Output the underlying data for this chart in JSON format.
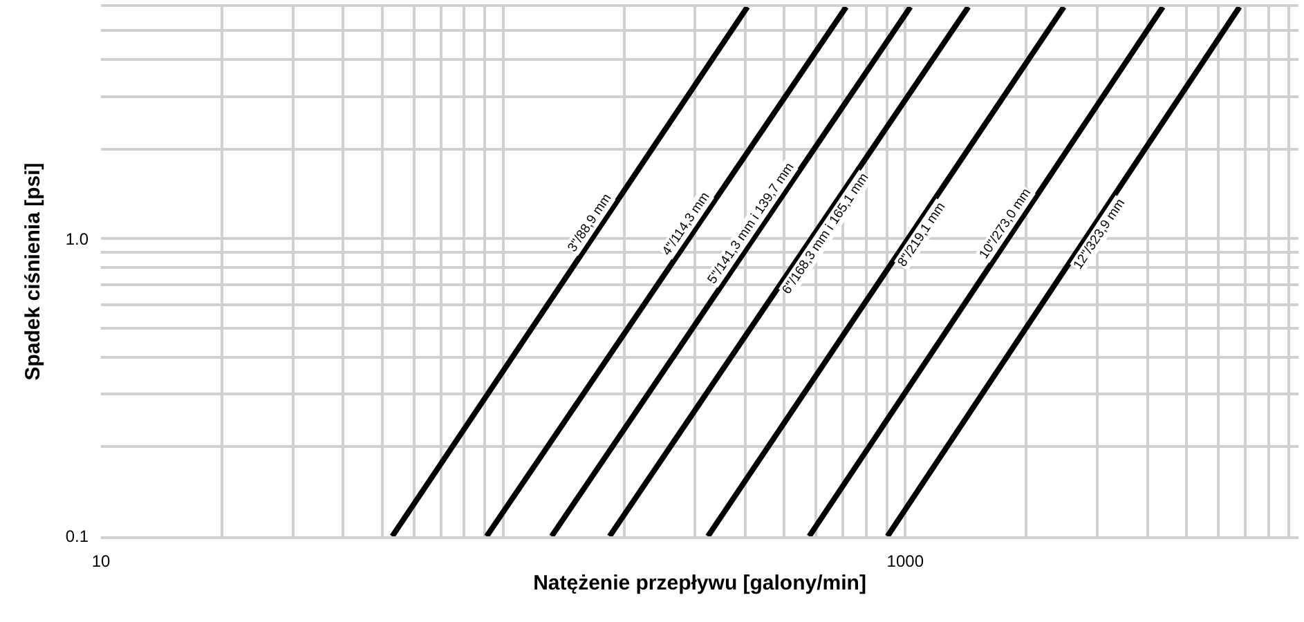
{
  "chart_data": {
    "type": "line",
    "xlabel": "Natężenie przepływu [galony/min]",
    "ylabel": "Spadek ciśnienia [psi]",
    "log": "xy",
    "grid": true,
    "legend": false,
    "marker": "none",
    "line_style": "solid",
    "xlim": [
      10,
      9500
    ],
    "ylim": [
      0.1,
      6
    ],
    "xticks": [
      10,
      {
        "value": 20,
        "label": null
      },
      {
        "value": 30,
        "label": null
      },
      {
        "value": 40,
        "label": null
      },
      {
        "value": 50,
        "label": null
      },
      {
        "value": 60,
        "label": null
      },
      {
        "value": 70,
        "label": null
      },
      {
        "value": 80,
        "label": null
      },
      {
        "value": 90,
        "label": null
      },
      {
        "value": 100,
        "label": null
      },
      {
        "value": 200,
        "label": null
      },
      {
        "value": 300,
        "label": null
      },
      {
        "value": 400,
        "label": null
      },
      {
        "value": 500,
        "label": null
      },
      {
        "value": 600,
        "label": null
      },
      {
        "value": 700,
        "label": null
      },
      {
        "value": 800,
        "label": null
      },
      {
        "value": 900,
        "label": null
      },
      1000,
      {
        "value": 2000,
        "label": null
      },
      {
        "value": 3000,
        "label": null
      },
      {
        "value": 4000,
        "label": null
      },
      {
        "value": 5000,
        "label": null
      },
      {
        "value": 6000,
        "label": null
      },
      {
        "value": 7000,
        "label": null
      },
      {
        "value": 8000,
        "label": null
      },
      {
        "value": 9000,
        "label": null
      }
    ],
    "yticks": [
      {
        "value": 0.1,
        "label": "0.1"
      },
      {
        "value": 0.2,
        "label": null
      },
      {
        "value": 0.3,
        "label": null
      },
      {
        "value": 0.4,
        "label": null
      },
      {
        "value": 0.5,
        "label": null
      },
      {
        "value": 0.6,
        "label": null
      },
      {
        "value": 0.7,
        "label": null
      },
      {
        "value": 0.8,
        "label": null
      },
      {
        "value": 0.9,
        "label": null
      },
      {
        "value": 1,
        "label": "1.0"
      },
      {
        "value": 2,
        "label": null
      },
      {
        "value": 3,
        "label": null
      },
      {
        "value": 4,
        "label": null
      },
      {
        "value": 5,
        "label": null
      },
      {
        "value": 6,
        "label": null
      }
    ],
    "series": [
      {
        "name": "3\"/88,9 mm",
        "color": "#000000",
        "x": [
          53,
          405
        ],
        "values": [
          0.1,
          6
        ]
      },
      {
        "name": "4\"/114,3 mm",
        "color": "#000000",
        "x": [
          91,
          713
        ],
        "values": [
          0.1,
          6
        ]
      },
      {
        "name": "5\"/141,3 mm i 139,7 mm",
        "color": "#000000",
        "x": [
          132,
          1030
        ],
        "values": [
          0.1,
          6
        ]
      },
      {
        "name": "6\"/168,3 mm i 165,1 mm",
        "color": "#000000",
        "x": [
          184,
          1435
        ],
        "values": [
          0.1,
          6
        ]
      },
      {
        "name": "8\"/219,1 mm",
        "color": "#000000",
        "x": [
          323,
          2480
        ],
        "values": [
          0.1,
          6
        ]
      },
      {
        "name": "10\"/273,0 mm",
        "color": "#000000",
        "x": [
          577,
          4370
        ],
        "values": [
          0.1,
          6
        ]
      },
      {
        "name": "12\"/323,9 mm",
        "color": "#000000",
        "x": [
          903,
          6780
        ],
        "values": [
          0.1,
          6
        ]
      }
    ]
  }
}
